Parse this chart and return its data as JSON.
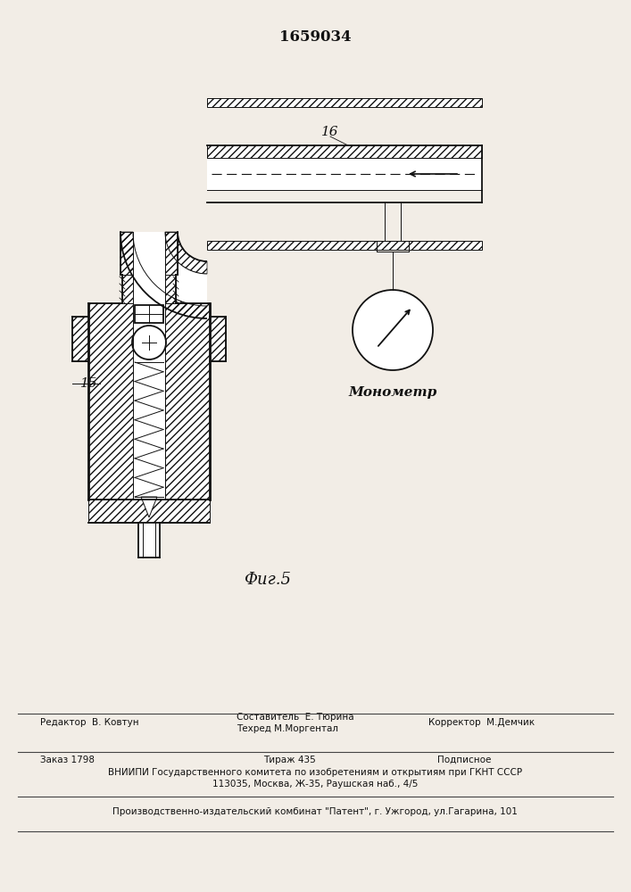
{
  "patent_number": "1659034",
  "fig_label": "Фиг.5",
  "label_15": "15",
  "label_16": "16",
  "manometer_text": "Монометр",
  "editor_text": "Редактор  В. Ковтун",
  "composer_text1": "Составитель  Е. Тюрина",
  "composer_text2": "Техред М.Моргентал",
  "corrector_text": "Корректор  М.Демчик",
  "order_text": "Заказ 1798",
  "tirazh_text": "Тираж 435",
  "podpisnoe_text": "Подписное",
  "vniiipi_text": "ВНИИПИ Государственного комитета по изобретениям и открытиям при ГКНТ СССР",
  "address_text": "113035, Москва, Ж-35, Раушская наб., 4/5",
  "publisher_text": "Производственно-издательский комбинат \"Патент\", г. Ужгород, ул.Гагарина, 101",
  "bg_color": "#f2ede6",
  "line_color": "#111111"
}
